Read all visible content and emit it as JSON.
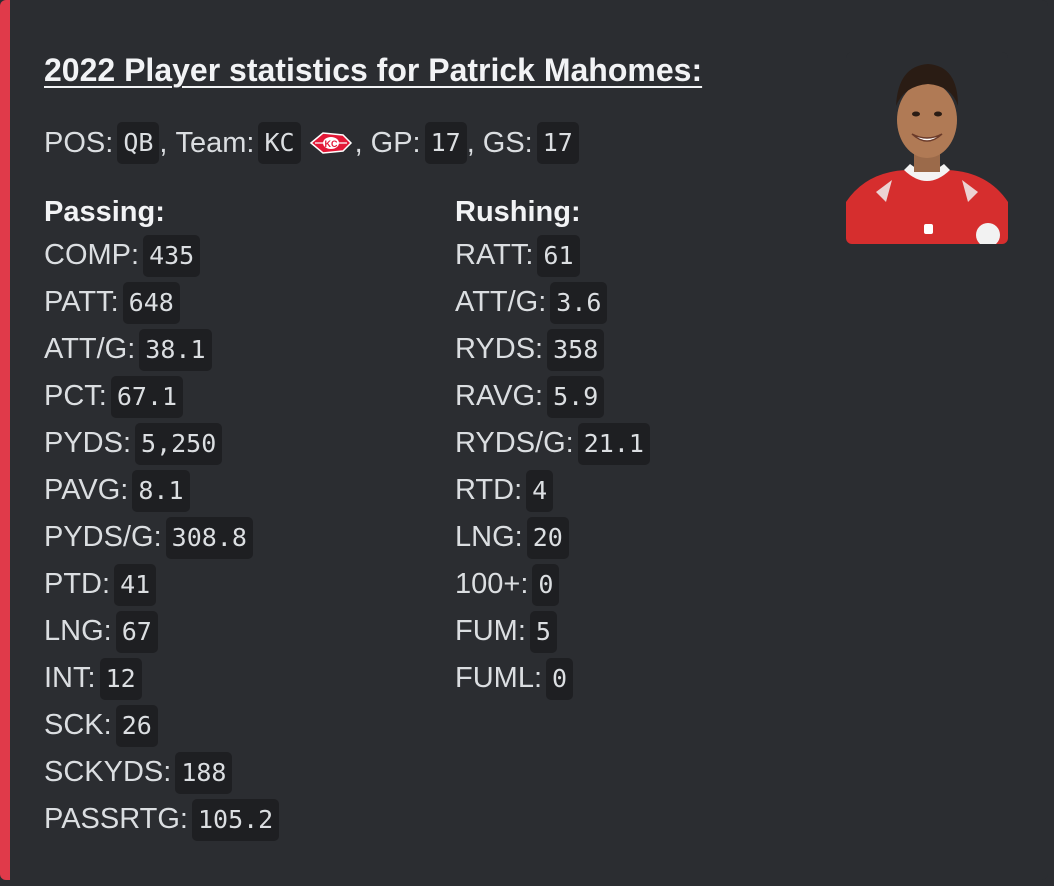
{
  "embed": {
    "accent_color": "#e03a4a",
    "title": "2022 Player statistics for Patrick Mahomes:",
    "info": [
      {
        "label": "POS:",
        "value": "QB",
        "sep": ","
      },
      {
        "label": "Team:",
        "value": "KC",
        "logo": "chiefs-logo",
        "sep": ","
      },
      {
        "label": "GP:",
        "value": "17",
        "sep": ","
      },
      {
        "label": "GS:",
        "value": "17",
        "sep": ""
      }
    ],
    "passing": {
      "heading": "Passing:",
      "stats": [
        {
          "label": "COMP:",
          "value": "435"
        },
        {
          "label": "PATT:",
          "value": "648"
        },
        {
          "label": "ATT/G:",
          "value": "38.1"
        },
        {
          "label": "PCT:",
          "value": "67.1"
        },
        {
          "label": "PYDS:",
          "value": "5,250"
        },
        {
          "label": "PAVG:",
          "value": "8.1"
        },
        {
          "label": "PYDS/G:",
          "value": "308.8"
        },
        {
          "label": "PTD:",
          "value": "41"
        },
        {
          "label": "LNG:",
          "value": "67"
        },
        {
          "label": "INT:",
          "value": "12"
        },
        {
          "label": "SCK:",
          "value": "26"
        },
        {
          "label": "SCKYDS:",
          "value": "188"
        },
        {
          "label": "PASSRTG:",
          "value": "105.2"
        }
      ]
    },
    "rushing": {
      "heading": "Rushing:",
      "stats": [
        {
          "label": "RATT:",
          "value": "61"
        },
        {
          "label": "ATT/G:",
          "value": "3.6"
        },
        {
          "label": "RYDS:",
          "value": "358"
        },
        {
          "label": "RAVG:",
          "value": "5.9"
        },
        {
          "label": "RYDS/G:",
          "value": "21.1"
        },
        {
          "label": "RTD:",
          "value": "4"
        },
        {
          "label": "LNG:",
          "value": "20"
        },
        {
          "label": "100+:",
          "value": "0"
        },
        {
          "label": "FUM:",
          "value": "5"
        },
        {
          "label": "FUML:",
          "value": "0"
        }
      ]
    },
    "thumbnail": {
      "icon": "player-portrait"
    }
  }
}
